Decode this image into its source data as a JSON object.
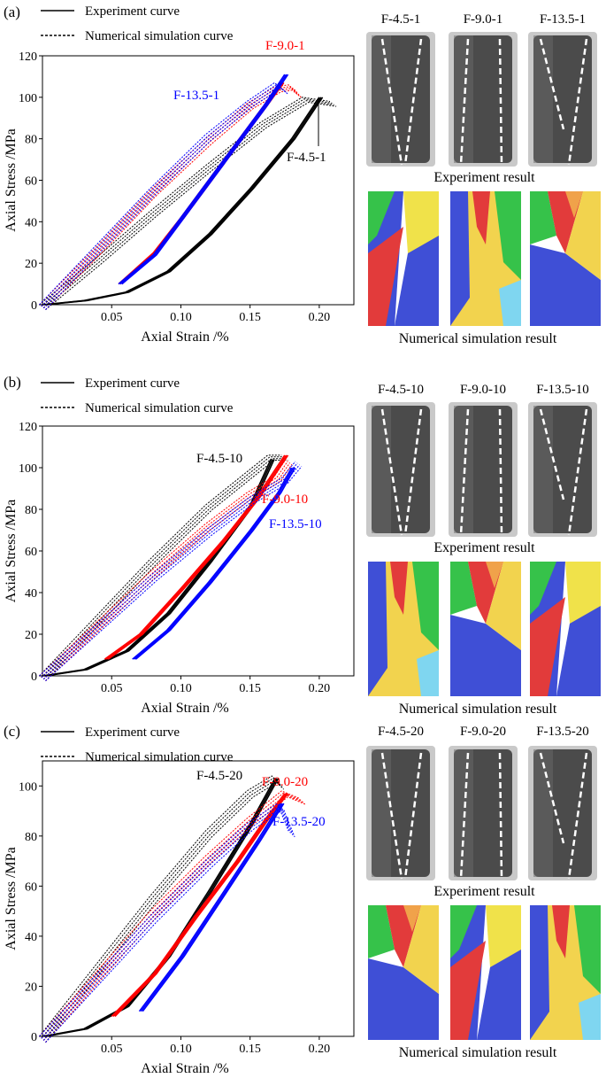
{
  "panels": [
    {
      "id": "a",
      "label": "(a)",
      "legend": {
        "experiment": "Experiment curve",
        "simulation": "Numerical simulation curve"
      },
      "chart_data": {
        "type": "line",
        "xlabel": "Axial Strain /%",
        "ylabel": "Axial Stress /MPa",
        "xlim": [
          0,
          0.225
        ],
        "ylim": [
          0,
          120
        ],
        "xticks": [
          0.05,
          0.1,
          0.15,
          0.2
        ],
        "xtick_labels": [
          "0.05",
          "0.10",
          "0.15",
          "0.20"
        ],
        "yticks": [
          0,
          20,
          40,
          60,
          80,
          100,
          120
        ],
        "ytick_labels": [
          "0",
          "20",
          "40",
          "60",
          "80",
          "100",
          "120"
        ],
        "series": [
          {
            "name": "F-4.5-1",
            "color": "#000000",
            "experiment": {
              "x": [
                0.0,
                0.03,
                0.06,
                0.09,
                0.12,
                0.15,
                0.18,
                0.2
              ],
              "y": [
                0,
                2,
                6,
                16,
                34,
                56,
                80,
                100
              ]
            },
            "simulation": {
              "x": [
                0.0,
                0.04,
                0.08,
                0.12,
                0.16,
                0.19,
                0.21
              ],
              "y": [
                0,
                22,
                45,
                67,
                88,
                100,
                98
              ]
            }
          },
          {
            "name": "F-9.0-1",
            "color": "#ff0000",
            "experiment": {
              "x": [
                0.055,
                0.08,
                0.1,
                0.12,
                0.14,
                0.16,
                0.172
              ],
              "y": [
                10,
                25,
                42,
                60,
                78,
                96,
                107
              ]
            },
            "simulation": {
              "x": [
                0.0,
                0.04,
                0.08,
                0.12,
                0.15,
                0.17,
                0.18,
                0.185
              ],
              "y": [
                0,
                27,
                55,
                80,
                97,
                105,
                106,
                102
              ]
            }
          },
          {
            "name": "F-13.5-1",
            "color": "#0000ff",
            "experiment": {
              "x": [
                0.055,
                0.08,
                0.1,
                0.12,
                0.14,
                0.16,
                0.175
              ],
              "y": [
                10,
                24,
                42,
                60,
                78,
                96,
                111
              ]
            },
            "simulation": {
              "x": [
                0.0,
                0.04,
                0.08,
                0.12,
                0.15,
                0.17,
                0.175
              ],
              "y": [
                0,
                28,
                56,
                82,
                98,
                107,
                104
              ]
            }
          }
        ],
        "annotations": [
          {
            "text": "F-9.0-1",
            "color": "#ff0000"
          },
          {
            "text": "F-13.5-1",
            "color": "#0000ff"
          },
          {
            "text": "F-4.5-1",
            "color": "#000000"
          }
        ]
      },
      "photos": {
        "labels": [
          "F-4.5-1",
          "F-9.0-1",
          "F-13.5-1"
        ],
        "experiment_caption": "Experiment result",
        "simulation_caption": "Numerical simulation result"
      }
    },
    {
      "id": "b",
      "label": "(b)",
      "legend": {
        "experiment": "Experiment curve",
        "simulation": "Numerical simulation curve"
      },
      "chart_data": {
        "type": "line",
        "xlabel": "Axial Strain /%",
        "ylabel": "Axial Stress /MPa",
        "xlim": [
          0,
          0.225
        ],
        "ylim": [
          0,
          120
        ],
        "xticks": [
          0.05,
          0.1,
          0.15,
          0.2
        ],
        "xtick_labels": [
          "0.05",
          "0.10",
          "0.15",
          "0.20"
        ],
        "yticks": [
          0,
          20,
          40,
          60,
          80,
          100,
          120
        ],
        "ytick_labels": [
          "0",
          "20",
          "40",
          "60",
          "80",
          "100",
          "120"
        ],
        "series": [
          {
            "name": "F-4.5-10",
            "color": "#000000",
            "experiment": {
              "x": [
                0.0,
                0.03,
                0.06,
                0.09,
                0.12,
                0.15,
                0.165
              ],
              "y": [
                0,
                3,
                12,
                30,
                55,
                82,
                104
              ]
            },
            "simulation": {
              "x": [
                0.0,
                0.04,
                0.08,
                0.12,
                0.15,
                0.165,
                0.175
              ],
              "y": [
                0,
                28,
                56,
                82,
                98,
                106,
                106
              ]
            }
          },
          {
            "name": "F-9.0-10",
            "color": "#ff0000",
            "experiment": {
              "x": [
                0.045,
                0.07,
                0.1,
                0.13,
                0.155,
                0.175
              ],
              "y": [
                8,
                20,
                42,
                65,
                86,
                106
              ]
            },
            "simulation": {
              "x": [
                0.0,
                0.04,
                0.08,
                0.12,
                0.15,
                0.17,
                0.178
              ],
              "y": [
                0,
                25,
                50,
                73,
                88,
                96,
                104
              ]
            }
          },
          {
            "name": "F-13.5-10",
            "color": "#0000ff",
            "experiment": {
              "x": [
                0.065,
                0.09,
                0.12,
                0.15,
                0.17,
                0.18
              ],
              "y": [
                8,
                22,
                45,
                70,
                88,
                100
              ]
            },
            "simulation": {
              "x": [
                0.0,
                0.04,
                0.08,
                0.12,
                0.15,
                0.175,
                0.185
              ],
              "y": [
                0,
                24,
                48,
                70,
                85,
                95,
                103
              ]
            }
          }
        ],
        "annotations": [
          {
            "text": "F-4.5-10",
            "color": "#000000"
          },
          {
            "text": "F-9.0-10",
            "color": "#ff0000"
          },
          {
            "text": "F-13.5-10",
            "color": "#0000ff"
          }
        ]
      },
      "photos": {
        "labels": [
          "F-4.5-10",
          "F-9.0-10",
          "F-13.5-10"
        ],
        "experiment_caption": "Experiment result",
        "simulation_caption": "Numerical simulation result"
      }
    },
    {
      "id": "c",
      "label": "(c)",
      "legend": {
        "experiment": "Experiment curve",
        "simulation": "Numerical simulation curve"
      },
      "chart_data": {
        "type": "line",
        "xlabel": "Axial Strain /%",
        "ylabel": "Axial Stress /MPa",
        "xlim": [
          0,
          0.225
        ],
        "ylim": [
          0,
          110
        ],
        "xticks": [
          0.05,
          0.1,
          0.15,
          0.2
        ],
        "xtick_labels": [
          "0.05",
          "0.10",
          "0.15",
          "0.20"
        ],
        "yticks": [
          0,
          20,
          40,
          60,
          80,
          100
        ],
        "ytick_labels": [
          "0",
          "20",
          "40",
          "60",
          "80",
          "100"
        ],
        "series": [
          {
            "name": "F-4.5-20",
            "color": "#000000",
            "experiment": {
              "x": [
                0.0,
                0.03,
                0.06,
                0.09,
                0.12,
                0.15,
                0.168
              ],
              "y": [
                0,
                3,
                12,
                32,
                58,
                85,
                103
              ]
            },
            "simulation": {
              "x": [
                0.0,
                0.04,
                0.08,
                0.12,
                0.15,
                0.168,
                0.172
              ],
              "y": [
                0,
                28,
                56,
                82,
                98,
                104,
                101
              ]
            }
          },
          {
            "name": "F-9.0-20",
            "color": "#ff0000",
            "experiment": {
              "x": [
                0.05,
                0.08,
                0.11,
                0.14,
                0.16,
                0.175
              ],
              "y": [
                8,
                25,
                48,
                70,
                86,
                97
              ]
            },
            "simulation": {
              "x": [
                0.0,
                0.04,
                0.08,
                0.12,
                0.15,
                0.175,
                0.188
              ],
              "y": [
                0,
                25,
                50,
                72,
                87,
                98,
                95
              ]
            }
          },
          {
            "name": "F-13.5-20",
            "color": "#0000ff",
            "experiment": {
              "x": [
                0.07,
                0.1,
                0.13,
                0.155,
                0.172
              ],
              "y": [
                10,
                32,
                57,
                78,
                93
              ]
            },
            "simulation": {
              "x": [
                0.0,
                0.04,
                0.08,
                0.12,
                0.15,
                0.172,
                0.18
              ],
              "y": [
                0,
                24,
                48,
                70,
                85,
                93,
                82
              ]
            }
          }
        ],
        "annotations": [
          {
            "text": "F-4.5-20",
            "color": "#000000"
          },
          {
            "text": "F-9.0-20",
            "color": "#ff0000"
          },
          {
            "text": "F-13.5-20",
            "color": "#0000ff"
          }
        ]
      },
      "photos": {
        "labels": [
          "F-4.5-20",
          "F-9.0-20",
          "F-13.5-20"
        ],
        "experiment_caption": "Experiment result",
        "simulation_caption": "Numerical simulation result"
      }
    }
  ]
}
